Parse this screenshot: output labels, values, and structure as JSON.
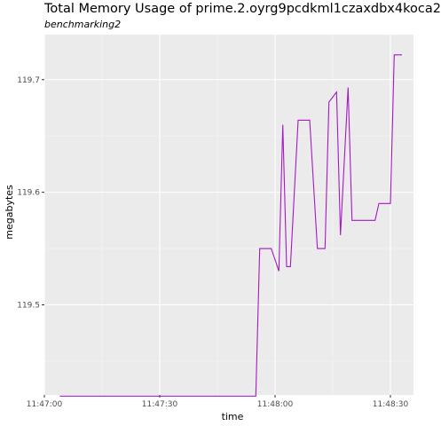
{
  "title": "Total Memory Usage of prime.2.oyrg9pcdkml1czaxdbx4koca2",
  "subtitle": "benchmarking2",
  "colors": {
    "panel": "#ebebeb",
    "grid_major": "#ffffff",
    "grid_minor": "#f5f5f5",
    "line": "#a31ac4"
  },
  "chart_data": {
    "type": "line",
    "title": "Total Memory Usage of prime.2.oyrg9pcdkml1czaxdbx4koca2",
    "subtitle": "benchmarking2",
    "xlabel": "time",
    "ylabel": "megabytes",
    "xlim": [
      "11:47:00",
      "11:48:36"
    ],
    "ylim": [
      119.42,
      119.74
    ],
    "x_ticks": [
      "11:47:00",
      "11:47:30",
      "11:48:00",
      "11:48:30"
    ],
    "y_ticks": [
      "119.5",
      "119.6",
      "119.7"
    ],
    "grid": true,
    "x": [
      "11:47:04",
      "11:47:55",
      "11:47:56",
      "11:47:59",
      "11:48:01",
      "11:48:02",
      "11:48:03",
      "11:48:04",
      "11:48:06",
      "11:48:09",
      "11:48:11",
      "11:48:13",
      "11:48:14",
      "11:48:16",
      "11:48:17",
      "11:48:19",
      "11:48:20",
      "11:48:26",
      "11:48:27",
      "11:48:30",
      "11:48:31",
      "11:48:33"
    ],
    "y": [
      119.419,
      119.419,
      119.55,
      119.55,
      119.53,
      119.66,
      119.534,
      119.534,
      119.664,
      119.664,
      119.55,
      119.55,
      119.68,
      119.689,
      119.562,
      119.693,
      119.575,
      119.575,
      119.59,
      119.59,
      119.722,
      119.722
    ]
  }
}
